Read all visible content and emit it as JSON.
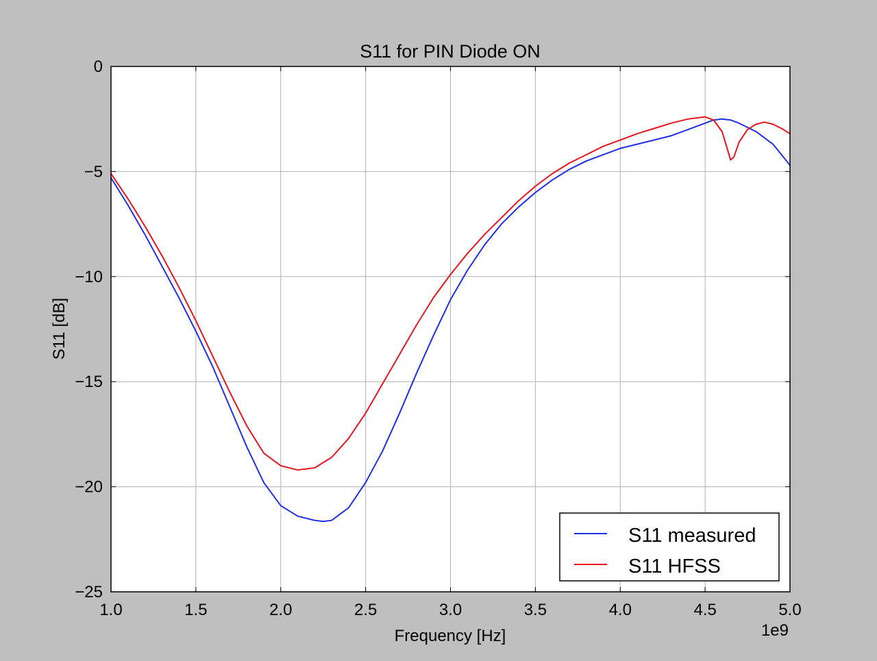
{
  "chart_data": {
    "type": "line",
    "title": "S11 for PIN Diode ON",
    "xlabel": "Frequency [Hz]",
    "ylabel": "S11 [dB]",
    "x_offset_label": "1e9",
    "xlim": [
      1.0,
      5.0
    ],
    "ylim": [
      -25,
      0
    ],
    "x_ticks": [
      1.0,
      1.5,
      2.0,
      2.5,
      3.0,
      3.5,
      4.0,
      4.5,
      5.0
    ],
    "x_tick_labels": [
      "1.0",
      "1.5",
      "2.0",
      "2.5",
      "3.0",
      "3.5",
      "4.0",
      "4.5",
      "5.0"
    ],
    "y_ticks": [
      0,
      -5,
      -10,
      -15,
      -20,
      -25
    ],
    "y_tick_labels": [
      "0",
      "−5",
      "−10",
      "−15",
      "−20",
      "−25"
    ],
    "grid": true,
    "legend_position": "lower-right",
    "series": [
      {
        "name": "S11 measured",
        "color": "#1f2ee8",
        "x": [
          1.0,
          1.1,
          1.2,
          1.3,
          1.4,
          1.5,
          1.6,
          1.7,
          1.8,
          1.9,
          2.0,
          2.1,
          2.2,
          2.25,
          2.3,
          2.4,
          2.5,
          2.6,
          2.7,
          2.8,
          2.9,
          3.0,
          3.1,
          3.2,
          3.3,
          3.4,
          3.5,
          3.6,
          3.7,
          3.8,
          3.9,
          4.0,
          4.1,
          4.2,
          4.3,
          4.4,
          4.5,
          4.55,
          4.6,
          4.65,
          4.7,
          4.8,
          4.9,
          5.0
        ],
        "y": [
          -5.3,
          -6.6,
          -8.0,
          -9.5,
          -11.0,
          -12.6,
          -14.3,
          -16.2,
          -18.1,
          -19.8,
          -20.9,
          -21.4,
          -21.6,
          -21.65,
          -21.6,
          -21.0,
          -19.8,
          -18.3,
          -16.5,
          -14.6,
          -12.8,
          -11.1,
          -9.7,
          -8.5,
          -7.5,
          -6.7,
          -6.0,
          -5.4,
          -4.9,
          -4.5,
          -4.2,
          -3.9,
          -3.7,
          -3.5,
          -3.3,
          -3.0,
          -2.7,
          -2.55,
          -2.5,
          -2.55,
          -2.7,
          -3.1,
          -3.7,
          -4.7
        ]
      },
      {
        "name": "S11 HFSS",
        "color": "#e8141e",
        "x": [
          1.0,
          1.1,
          1.2,
          1.3,
          1.4,
          1.5,
          1.6,
          1.7,
          1.8,
          1.9,
          2.0,
          2.1,
          2.2,
          2.3,
          2.4,
          2.5,
          2.6,
          2.7,
          2.8,
          2.9,
          3.0,
          3.1,
          3.2,
          3.3,
          3.4,
          3.5,
          3.6,
          3.7,
          3.8,
          3.9,
          4.0,
          4.1,
          4.2,
          4.3,
          4.4,
          4.5,
          4.55,
          4.6,
          4.63,
          4.65,
          4.67,
          4.7,
          4.75,
          4.8,
          4.85,
          4.9,
          4.95,
          5.0
        ],
        "y": [
          -5.1,
          -6.3,
          -7.6,
          -9.0,
          -10.5,
          -12.1,
          -13.8,
          -15.5,
          -17.1,
          -18.4,
          -19.0,
          -19.2,
          -19.1,
          -18.6,
          -17.7,
          -16.5,
          -15.1,
          -13.7,
          -12.3,
          -11.0,
          -9.9,
          -8.9,
          -8.0,
          -7.2,
          -6.4,
          -5.7,
          -5.1,
          -4.6,
          -4.2,
          -3.8,
          -3.5,
          -3.2,
          -2.95,
          -2.7,
          -2.5,
          -2.4,
          -2.55,
          -3.1,
          -3.9,
          -4.45,
          -4.3,
          -3.6,
          -3.0,
          -2.75,
          -2.65,
          -2.75,
          -2.95,
          -3.2
        ]
      }
    ]
  }
}
